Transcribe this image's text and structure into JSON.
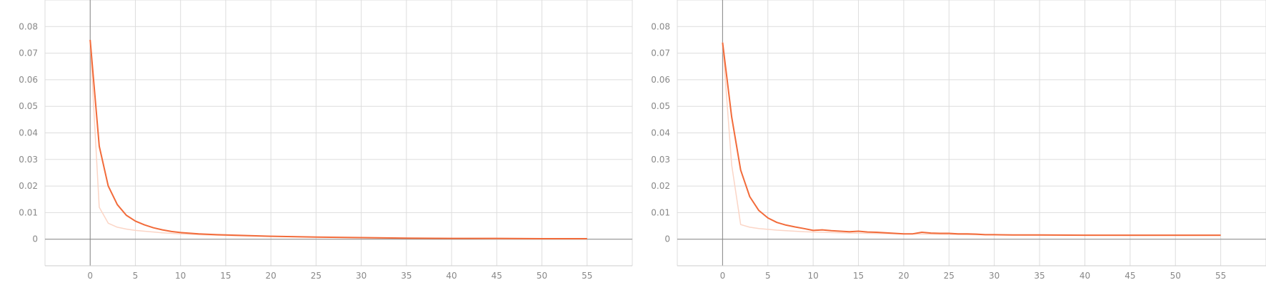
{
  "chart_data": [
    {
      "type": "line",
      "title": "",
      "xlabel": "",
      "ylabel": "",
      "xlim": [
        -5,
        60
      ],
      "ylim": [
        -0.01,
        0.09
      ],
      "x_ticks": [
        "0",
        "5",
        "10",
        "15",
        "20",
        "25",
        "30",
        "35",
        "40",
        "45",
        "50",
        "55"
      ],
      "y_ticks": [
        "0",
        "0.01",
        "0.02",
        "0.03",
        "0.04",
        "0.05",
        "0.06",
        "0.07",
        "0.08"
      ],
      "grid": true,
      "colors": {
        "smoothed": "#f26b3a",
        "raw": "#fbd5c6",
        "axis": "#888888",
        "grid": "#dddddd"
      },
      "series": [
        {
          "style": "raw",
          "x": [
            0,
            1,
            2,
            3,
            4,
            5,
            6,
            7,
            8,
            9,
            10,
            12,
            14,
            16,
            18,
            20,
            25,
            30,
            35,
            40,
            45,
            50,
            55
          ],
          "y": [
            0.074,
            0.012,
            0.006,
            0.0045,
            0.0038,
            0.0033,
            0.003,
            0.0027,
            0.0024,
            0.0022,
            0.002,
            0.0017,
            0.0015,
            0.0013,
            0.0012,
            0.0011,
            0.0008,
            0.0005,
            0.0004,
            0.0003,
            0.0002,
            0.0002,
            0.0002
          ]
        },
        {
          "style": "smoothed",
          "x": [
            0,
            1,
            2,
            3,
            4,
            5,
            6,
            7,
            8,
            9,
            10,
            12,
            14,
            16,
            18,
            20,
            25,
            30,
            35,
            40,
            45,
            50,
            55
          ],
          "y": [
            0.075,
            0.035,
            0.02,
            0.013,
            0.009,
            0.0068,
            0.0054,
            0.0043,
            0.0035,
            0.0029,
            0.0025,
            0.002,
            0.0017,
            0.0015,
            0.0013,
            0.0011,
            0.0008,
            0.0006,
            0.0004,
            0.0003,
            0.0003,
            0.0002,
            0.0002
          ]
        }
      ]
    },
    {
      "type": "line",
      "title": "",
      "xlabel": "",
      "ylabel": "",
      "xlim": [
        -5,
        60
      ],
      "ylim": [
        -0.01,
        0.09
      ],
      "x_ticks": [
        "0",
        "5",
        "10",
        "15",
        "20",
        "25",
        "30",
        "35",
        "40",
        "45",
        "50",
        "55"
      ],
      "y_ticks": [
        "0",
        "0.01",
        "0.02",
        "0.03",
        "0.04",
        "0.05",
        "0.06",
        "0.07",
        "0.08"
      ],
      "grid": true,
      "colors": {
        "smoothed": "#f26b3a",
        "raw": "#fbd5c6",
        "axis": "#888888",
        "grid": "#dddddd"
      },
      "series": [
        {
          "style": "raw",
          "x": [
            0,
            1,
            2,
            3,
            4,
            5,
            6,
            7,
            8,
            9,
            10,
            12,
            14,
            16,
            18,
            20,
            25,
            30,
            35,
            40,
            45,
            50,
            55
          ],
          "y": [
            0.074,
            0.028,
            0.0055,
            0.0045,
            0.004,
            0.0037,
            0.0034,
            0.0032,
            0.003,
            0.0028,
            0.0027,
            0.0025,
            0.0023,
            0.0022,
            0.0021,
            0.002,
            0.0018,
            0.0016,
            0.0015,
            0.0015,
            0.0014,
            0.0014,
            0.0014
          ]
        },
        {
          "style": "smoothed",
          "x": [
            0,
            1,
            2,
            3,
            4,
            5,
            6,
            7,
            8,
            9,
            10,
            11,
            12,
            13,
            14,
            15,
            16,
            17,
            18,
            19,
            20,
            21,
            22,
            23,
            24,
            25,
            26,
            27,
            28,
            29,
            30,
            32,
            35,
            40,
            45,
            50,
            55
          ],
          "y": [
            0.074,
            0.046,
            0.026,
            0.016,
            0.0108,
            0.008,
            0.0063,
            0.0053,
            0.0046,
            0.004,
            0.0033,
            0.0035,
            0.0032,
            0.003,
            0.0028,
            0.003,
            0.0027,
            0.0026,
            0.0024,
            0.0022,
            0.002,
            0.002,
            0.0026,
            0.0023,
            0.0022,
            0.0022,
            0.002,
            0.002,
            0.0019,
            0.0017,
            0.0017,
            0.0016,
            0.0016,
            0.0015,
            0.0015,
            0.0015,
            0.0015
          ]
        }
      ]
    }
  ]
}
